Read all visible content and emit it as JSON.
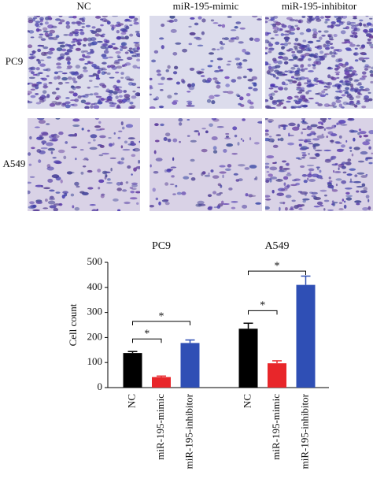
{
  "images": {
    "columns": [
      "NC",
      "miR-195-mimic",
      "miR-195-inhibitor"
    ],
    "rows": [
      "PC9",
      "A549"
    ]
  },
  "chart_data": {
    "type": "bar",
    "ylabel": "Cell count",
    "categories": [
      "PC9",
      "A549"
    ],
    "series": [
      {
        "name": "NC",
        "color": "#000000",
        "values": [
          138,
          235
        ],
        "errors": [
          6,
          22
        ]
      },
      {
        "name": "miR-195-mimic",
        "color": "#e8262a",
        "values": [
          42,
          97
        ],
        "errors": [
          4,
          10
        ]
      },
      {
        "name": "miR-195-inhibitor",
        "color": "#2f4fb5",
        "values": [
          178,
          410
        ],
        "errors": [
          12,
          35
        ]
      }
    ],
    "comparisons": [
      {
        "category": 0,
        "series": [
          0,
          1
        ],
        "label": "*"
      },
      {
        "category": 0,
        "series": [
          0,
          2
        ],
        "label": "*"
      },
      {
        "category": 1,
        "series": [
          0,
          1
        ],
        "label": "*"
      },
      {
        "category": 1,
        "series": [
          0,
          2
        ],
        "label": "*"
      }
    ],
    "ylim": [
      0,
      500
    ],
    "yticks": [
      0,
      100,
      200,
      300,
      400,
      500
    ]
  }
}
